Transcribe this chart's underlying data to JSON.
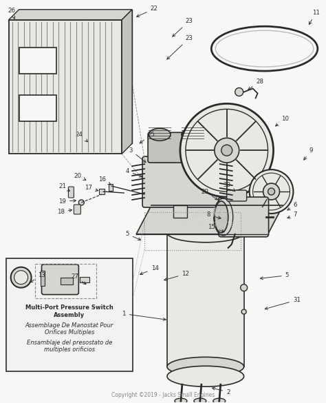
{
  "bg_color": "#f7f7f5",
  "dark_color": "#2a2a2a",
  "med_gray": "#888888",
  "light_gray": "#bbbbbb",
  "fill_light": "#e8e8e5",
  "fill_med": "#d5d5d2",
  "fill_dark": "#c2c2be",
  "copyright_text": "Copyright ©2019 - Jacks Small Engines",
  "inset_texts": [
    "Multi-Port Pressure Switch",
    "Assembly",
    "Assemblage De Manostat Pour",
    "Orifices Multiples",
    "Ensamblaje del presostato de",
    "multiples orificios"
  ]
}
